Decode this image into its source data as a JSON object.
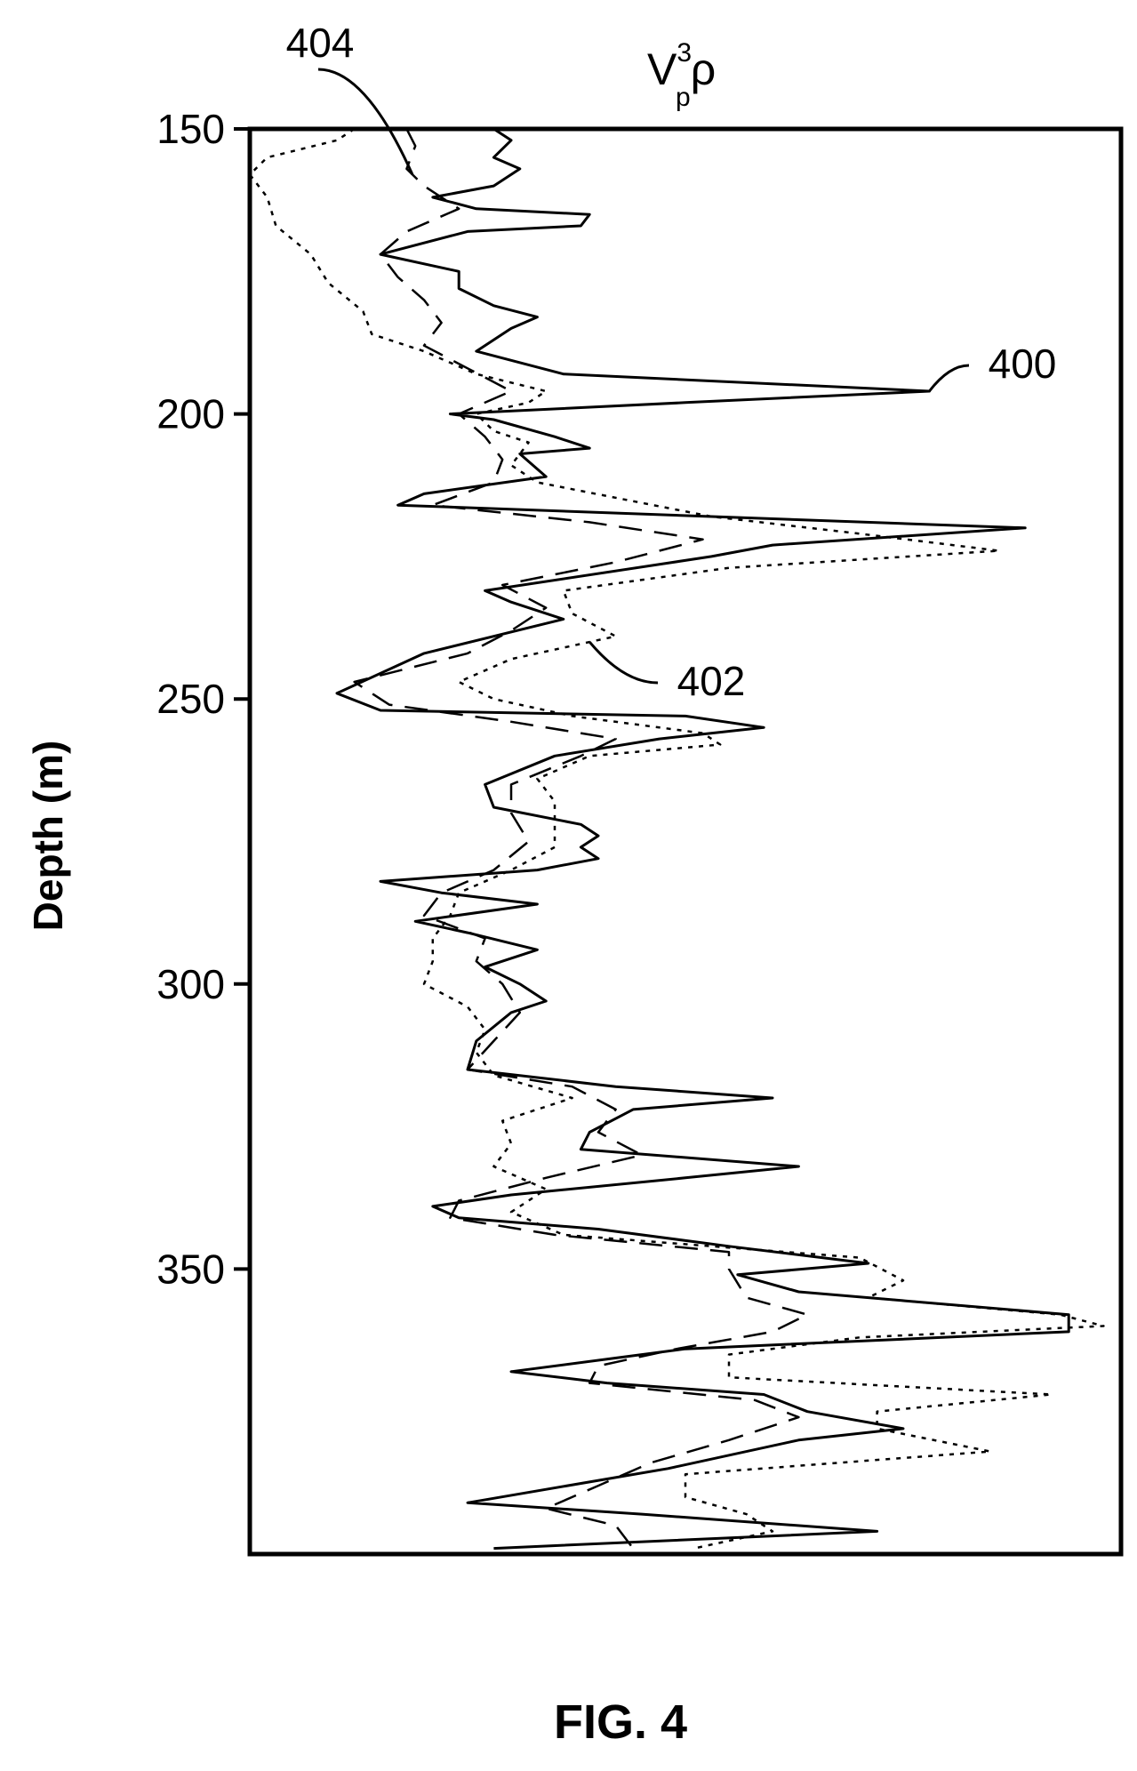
{
  "figure_label": "FIG. 4",
  "chart_data": {
    "type": "line",
    "title": {
      "base": "V",
      "superscript": "3",
      "subscript": "p",
      "suffix": "ρ"
    },
    "xlabel": "",
    "ylabel": "Depth (m)",
    "ylim": [
      150,
      400
    ],
    "yticks": [
      150,
      200,
      250,
      300,
      350
    ],
    "y_inverted": true,
    "grid": false,
    "x_tick_labels_shown": false,
    "xlim": [
      0,
      100
    ],
    "series": [
      {
        "name": "400",
        "style": "solid",
        "points": [
          [
            150,
            28
          ],
          [
            152,
            30
          ],
          [
            155,
            28
          ],
          [
            157,
            31
          ],
          [
            160,
            28
          ],
          [
            162,
            21
          ],
          [
            164,
            26
          ],
          [
            165,
            39
          ],
          [
            167,
            38
          ],
          [
            168,
            25
          ],
          [
            172,
            15
          ],
          [
            175,
            24
          ],
          [
            178,
            24
          ],
          [
            181,
            28
          ],
          [
            183,
            33
          ],
          [
            185,
            30
          ],
          [
            189,
            26
          ],
          [
            193,
            36
          ],
          [
            196,
            78
          ],
          [
            198,
            50
          ],
          [
            200,
            23
          ],
          [
            201,
            28
          ],
          [
            204,
            35
          ],
          [
            206,
            39
          ],
          [
            207,
            31
          ],
          [
            211,
            34
          ],
          [
            214,
            20
          ],
          [
            216,
            17
          ],
          [
            218,
            53
          ],
          [
            220,
            89
          ],
          [
            223,
            60
          ],
          [
            225,
            53
          ],
          [
            231,
            27
          ],
          [
            233,
            30
          ],
          [
            236,
            36
          ],
          [
            242,
            20
          ],
          [
            249,
            10
          ],
          [
            252,
            15
          ],
          [
            253,
            50
          ],
          [
            255,
            59
          ],
          [
            257,
            47
          ],
          [
            260,
            35
          ],
          [
            265,
            27
          ],
          [
            269,
            28
          ],
          [
            272,
            38
          ],
          [
            274,
            40
          ],
          [
            276,
            38
          ],
          [
            278,
            40
          ],
          [
            280,
            33
          ],
          [
            282,
            15
          ],
          [
            284,
            22
          ],
          [
            286,
            33
          ],
          [
            289,
            19
          ],
          [
            291,
            25
          ],
          [
            294,
            33
          ],
          [
            297,
            27
          ],
          [
            300,
            31
          ],
          [
            303,
            34
          ],
          [
            305,
            30
          ],
          [
            310,
            26
          ],
          [
            315,
            25
          ],
          [
            318,
            42
          ],
          [
            320,
            60
          ],
          [
            322,
            44
          ],
          [
            326,
            39
          ],
          [
            329,
            38
          ],
          [
            332,
            63
          ],
          [
            334,
            50
          ],
          [
            337,
            30
          ],
          [
            339,
            21
          ],
          [
            341,
            24
          ],
          [
            343,
            40
          ],
          [
            346,
            55
          ],
          [
            349,
            71
          ],
          [
            351,
            56
          ],
          [
            354,
            63
          ],
          [
            358,
            94
          ],
          [
            361,
            94
          ],
          [
            364,
            50
          ],
          [
            368,
            30
          ],
          [
            370,
            41
          ],
          [
            372,
            59
          ],
          [
            375,
            64
          ],
          [
            378,
            75
          ],
          [
            380,
            63
          ],
          [
            385,
            48
          ],
          [
            391,
            25
          ],
          [
            393,
            45
          ],
          [
            396,
            72
          ],
          [
            399,
            28
          ]
        ]
      },
      {
        "name": "402",
        "style": "dotted",
        "points": [
          [
            150,
            12
          ],
          [
            152,
            10
          ],
          [
            155,
            2
          ],
          [
            158,
            0
          ],
          [
            162,
            2
          ],
          [
            167,
            3
          ],
          [
            172,
            7
          ],
          [
            177,
            9
          ],
          [
            182,
            13
          ],
          [
            186,
            14
          ],
          [
            189,
            20
          ],
          [
            193,
            26
          ],
          [
            196,
            34
          ],
          [
            198,
            32
          ],
          [
            200,
            26
          ],
          [
            203,
            28
          ],
          [
            205,
            32
          ],
          [
            209,
            30
          ],
          [
            212,
            33
          ],
          [
            215,
            43
          ],
          [
            218,
            53
          ],
          [
            221,
            70
          ],
          [
            224,
            86
          ],
          [
            227,
            55
          ],
          [
            231,
            36
          ],
          [
            235,
            37
          ],
          [
            239,
            42
          ],
          [
            243,
            30
          ],
          [
            247,
            24
          ],
          [
            250,
            28
          ],
          [
            253,
            37
          ],
          [
            256,
            52
          ],
          [
            258,
            54
          ],
          [
            260,
            39
          ],
          [
            264,
            33
          ],
          [
            268,
            35
          ],
          [
            272,
            35
          ],
          [
            276,
            35
          ],
          [
            280,
            30
          ],
          [
            284,
            24
          ],
          [
            288,
            23
          ],
          [
            292,
            21
          ],
          [
            296,
            21
          ],
          [
            300,
            20
          ],
          [
            304,
            25
          ],
          [
            308,
            27
          ],
          [
            312,
            26
          ],
          [
            316,
            28
          ],
          [
            320,
            37
          ],
          [
            324,
            29
          ],
          [
            328,
            30
          ],
          [
            332,
            28
          ],
          [
            336,
            34
          ],
          [
            340,
            30
          ],
          [
            344,
            36
          ],
          [
            348,
            70
          ],
          [
            352,
            75
          ],
          [
            355,
            71
          ],
          [
            358,
            93
          ],
          [
            360,
            98
          ],
          [
            362,
            70
          ],
          [
            365,
            55
          ],
          [
            369,
            55
          ],
          [
            372,
            92
          ],
          [
            375,
            72
          ],
          [
            378,
            72
          ],
          [
            382,
            85
          ],
          [
            386,
            50
          ],
          [
            390,
            50
          ],
          [
            393,
            57
          ],
          [
            396,
            60
          ],
          [
            399,
            51
          ]
        ]
      },
      {
        "name": "404",
        "style": "dashed",
        "points": [
          [
            150,
            18
          ],
          [
            153,
            19
          ],
          [
            157,
            18
          ],
          [
            160,
            20
          ],
          [
            164,
            24
          ],
          [
            168,
            18
          ],
          [
            172,
            15
          ],
          [
            176,
            17
          ],
          [
            180,
            20
          ],
          [
            184,
            22
          ],
          [
            188,
            20
          ],
          [
            192,
            25
          ],
          [
            196,
            30
          ],
          [
            200,
            24
          ],
          [
            204,
            27
          ],
          [
            208,
            29
          ],
          [
            212,
            28
          ],
          [
            216,
            21
          ],
          [
            219,
            39
          ],
          [
            222,
            52
          ],
          [
            226,
            42
          ],
          [
            230,
            29
          ],
          [
            234,
            34
          ],
          [
            238,
            30
          ],
          [
            242,
            25
          ],
          [
            247,
            12
          ],
          [
            251,
            16
          ],
          [
            254,
            30
          ],
          [
            257,
            42
          ],
          [
            260,
            38
          ],
          [
            265,
            30
          ],
          [
            270,
            30
          ],
          [
            275,
            32
          ],
          [
            280,
            28
          ],
          [
            284,
            22
          ],
          [
            288,
            20
          ],
          [
            292,
            27
          ],
          [
            296,
            26
          ],
          [
            300,
            29
          ],
          [
            305,
            31
          ],
          [
            310,
            28
          ],
          [
            315,
            25
          ],
          [
            318,
            37
          ],
          [
            322,
            42
          ],
          [
            326,
            40
          ],
          [
            330,
            45
          ],
          [
            334,
            34
          ],
          [
            338,
            24
          ],
          [
            341,
            23
          ],
          [
            344,
            35
          ],
          [
            347,
            55
          ],
          [
            350,
            55
          ],
          [
            355,
            57
          ],
          [
            358,
            64
          ],
          [
            361,
            60
          ],
          [
            364,
            49
          ],
          [
            367,
            40
          ],
          [
            370,
            39
          ],
          [
            373,
            58
          ],
          [
            376,
            63
          ],
          [
            380,
            55
          ],
          [
            384,
            46
          ],
          [
            388,
            40
          ],
          [
            392,
            34
          ],
          [
            395,
            42
          ],
          [
            399,
            44
          ]
        ]
      }
    ],
    "callouts": [
      {
        "label": "400",
        "series": "400",
        "at_depth": 196
      },
      {
        "label": "402",
        "series": "402",
        "at_depth": 240
      },
      {
        "label": "404",
        "series": "404",
        "at_depth": 158
      }
    ]
  }
}
